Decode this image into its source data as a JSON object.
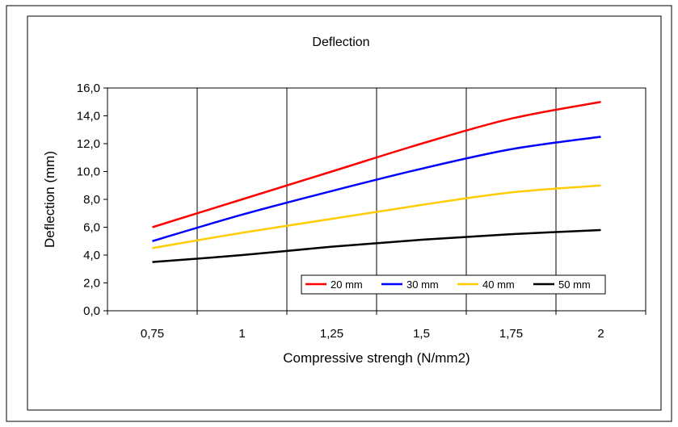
{
  "chart_data": {
    "type": "line",
    "title": "Deflection",
    "xlabel": "Compressive strengh (N/mm2)",
    "ylabel": "Deflection (mm)",
    "categories": [
      "0,75",
      "1",
      "1,25",
      "1,5",
      "1,75",
      "2"
    ],
    "x": [
      0.75,
      1.0,
      1.25,
      1.5,
      1.75,
      2.0
    ],
    "ylim": [
      0,
      16
    ],
    "yticks": [
      "0,0",
      "2,0",
      "4,0",
      "6,0",
      "8,0",
      "10,0",
      "12,0",
      "14,0",
      "16,0"
    ],
    "grid": "vertical",
    "legend_position": "bottom-right",
    "series": [
      {
        "name": "20 mm",
        "color": "#ff0000",
        "values": [
          6.0,
          8.0,
          10.0,
          12.0,
          13.8,
          15.0
        ]
      },
      {
        "name": "30 mm",
        "color": "#0000ff",
        "values": [
          5.0,
          6.9,
          8.6,
          10.2,
          11.6,
          12.5
        ]
      },
      {
        "name": "40 mm",
        "color": "#ffcc00",
        "values": [
          4.5,
          5.6,
          6.6,
          7.6,
          8.5,
          9.0
        ]
      },
      {
        "name": "50 mm",
        "color": "#000000",
        "values": [
          3.5,
          4.0,
          4.6,
          5.1,
          5.5,
          5.8
        ]
      }
    ]
  }
}
